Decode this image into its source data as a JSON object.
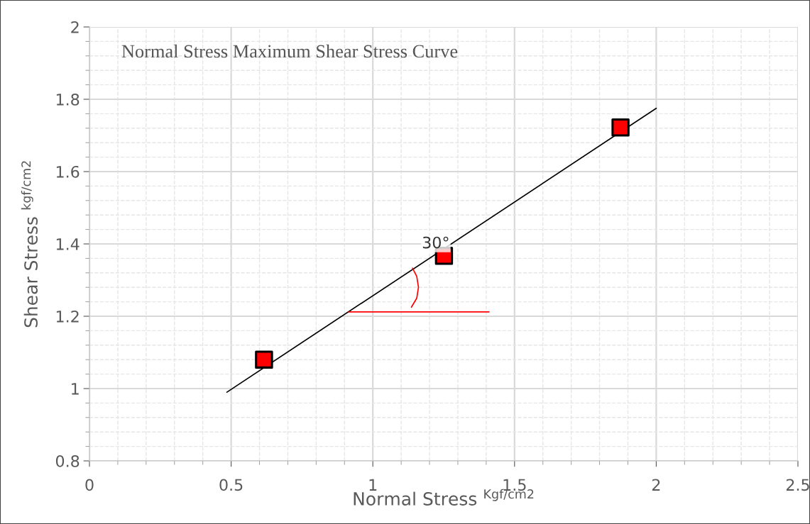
{
  "chart_data": {
    "type": "scatter",
    "title": "Normal Stress Maximum Shear Stress Curve",
    "xlabel": "Normal Stress $^{Kgf/cm2}$",
    "ylabel": "Shear Stress $^{kgf/cm2}$",
    "series": [
      {
        "type": "line",
        "color": "#000000",
        "x": [
          0.485,
          2.0
        ],
        "values": [
          0.99,
          1.775
        ]
      },
      {
        "type": "line",
        "color": "#ff0000",
        "x": [
          0.915,
          1.41
        ],
        "values": [
          1.212,
          1.212
        ]
      },
      {
        "type": "line",
        "color": "#ff0000",
        "x": [
          1.136,
          1.155,
          1.161,
          1.155,
          1.14
        ],
        "values": [
          1.225,
          1.25,
          1.28,
          1.31,
          1.333
        ]
      },
      {
        "color": "#ff0000",
        "marker": "square",
        "x": [
          0.616,
          1.251,
          1.874
        ],
        "values": [
          1.08,
          1.367,
          1.722
        ]
      }
    ],
    "annotations": [
      {
        "text": "30°",
        "x": 1.25,
        "y": 1.4
      }
    ],
    "xlim": [
      0,
      2.5
    ],
    "xticks": [
      0,
      0.5,
      1,
      1.5,
      2,
      2.5
    ],
    "ylim": [
      0.8,
      2
    ],
    "yticks": [
      0.8,
      1,
      1.2,
      1.4,
      1.6,
      1.8,
      2
    ],
    "grid": true
  }
}
